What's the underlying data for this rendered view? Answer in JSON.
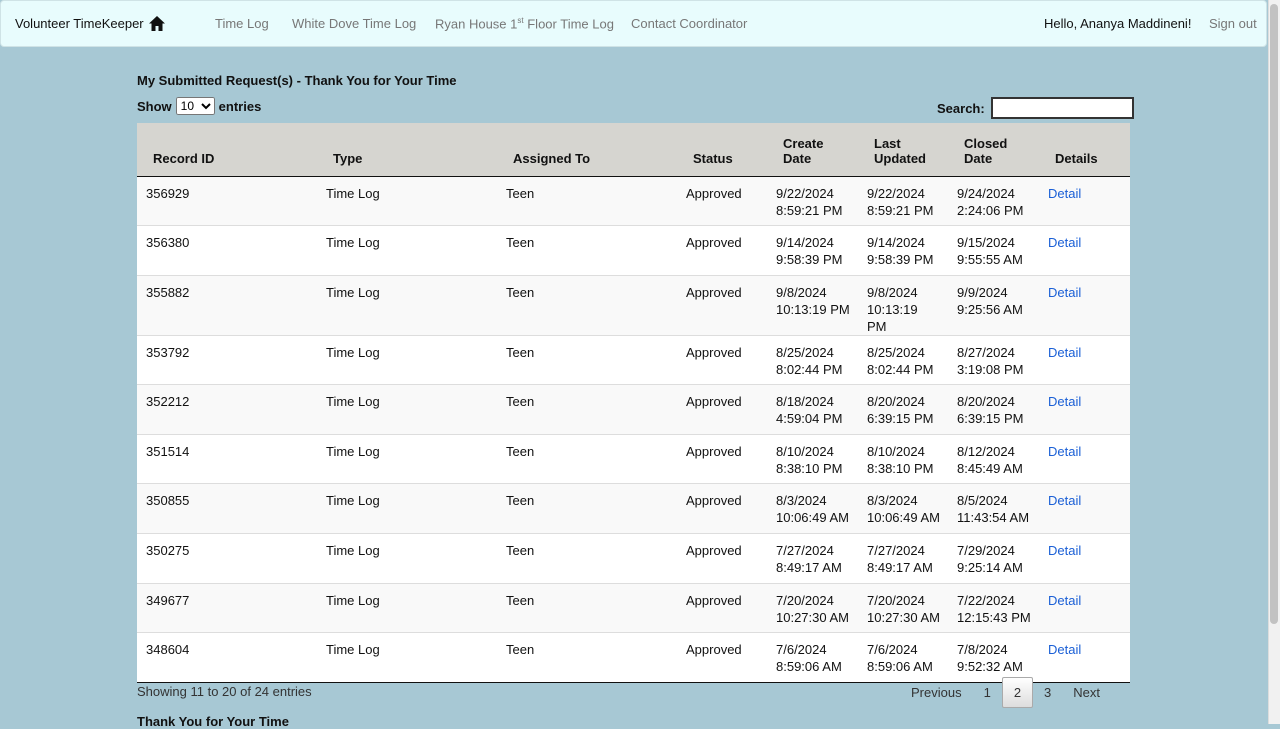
{
  "nav": {
    "brand": "Volunteer TimeKeeper",
    "links": [
      "Time Log",
      "White Dove Time Log",
      "Ryan House 1",
      "st",
      " Floor Time Log",
      "Contact Coordinator"
    ],
    "greeting": "Hello, Ananya Maddineni!",
    "signout": "Sign out"
  },
  "page": {
    "title": "My Submitted Request(s) - Thank You for Your Time",
    "show": "Show",
    "entries_value": "10",
    "entries": "entries",
    "search_label": "Search:",
    "search_value": "",
    "footer": "Thank You for Your Time"
  },
  "table": {
    "headers": [
      "Record ID",
      "Type",
      "Assigned To",
      "Status",
      "Create Date",
      "Last Updated",
      "Closed Date",
      "Details"
    ],
    "rows": [
      [
        "356929",
        "Time Log",
        "Teen",
        "Approved",
        "9/22/2024",
        "8:59:21 PM",
        "9/22/2024",
        "8:59:21 PM",
        "9/24/2024",
        "2:24:06 PM",
        "Detail"
      ],
      [
        "356380",
        "Time Log",
        "Teen",
        "Approved",
        "9/14/2024",
        "9:58:39 PM",
        "9/14/2024",
        "9:58:39 PM",
        "9/15/2024",
        "9:55:55 AM",
        "Detail"
      ],
      [
        "355882",
        "Time Log",
        "Teen",
        "Approved",
        "9/8/2024",
        "10:13:19 PM",
        "9/8/2024",
        "10:13:19 PM",
        "9/9/2024",
        "9:25:56 AM",
        "Detail"
      ],
      [
        "353792",
        "Time Log",
        "Teen",
        "Approved",
        "8/25/2024",
        "8:02:44 PM",
        "8/25/2024",
        "8:02:44 PM",
        "8/27/2024",
        "3:19:08 PM",
        "Detail"
      ],
      [
        "352212",
        "Time Log",
        "Teen",
        "Approved",
        "8/18/2024",
        "4:59:04 PM",
        "8/20/2024",
        "6:39:15 PM",
        "8/20/2024",
        "6:39:15 PM",
        "Detail"
      ],
      [
        "351514",
        "Time Log",
        "Teen",
        "Approved",
        "8/10/2024",
        "8:38:10 PM",
        "8/10/2024",
        "8:38:10 PM",
        "8/12/2024",
        "8:45:49 AM",
        "Detail"
      ],
      [
        "350855",
        "Time Log",
        "Teen",
        "Approved",
        "8/3/2024",
        "10:06:49 AM",
        "8/3/2024",
        "10:06:49 AM",
        "8/5/2024",
        "11:43:54 AM",
        "Detail"
      ],
      [
        "350275",
        "Time Log",
        "Teen",
        "Approved",
        "7/27/2024",
        "8:49:17 AM",
        "7/27/2024",
        "8:49:17 AM",
        "7/29/2024",
        "9:25:14 AM",
        "Detail"
      ],
      [
        "349677",
        "Time Log",
        "Teen",
        "Approved",
        "7/20/2024",
        "10:27:30 AM",
        "7/20/2024",
        "10:27:30 AM",
        "7/22/2024",
        "12:15:43 PM",
        "Detail"
      ],
      [
        "348604",
        "Time Log",
        "Teen",
        "Approved",
        "7/6/2024",
        "8:59:06 AM",
        "7/6/2024",
        "8:59:06 AM",
        "7/8/2024",
        "9:52:32 AM",
        "Detail"
      ]
    ]
  },
  "pagination": {
    "info": "Showing 11 to 20 of 24 entries",
    "previous": "Previous",
    "pages": [
      "1",
      "2",
      "3"
    ],
    "current": "2",
    "next": "Next"
  }
}
